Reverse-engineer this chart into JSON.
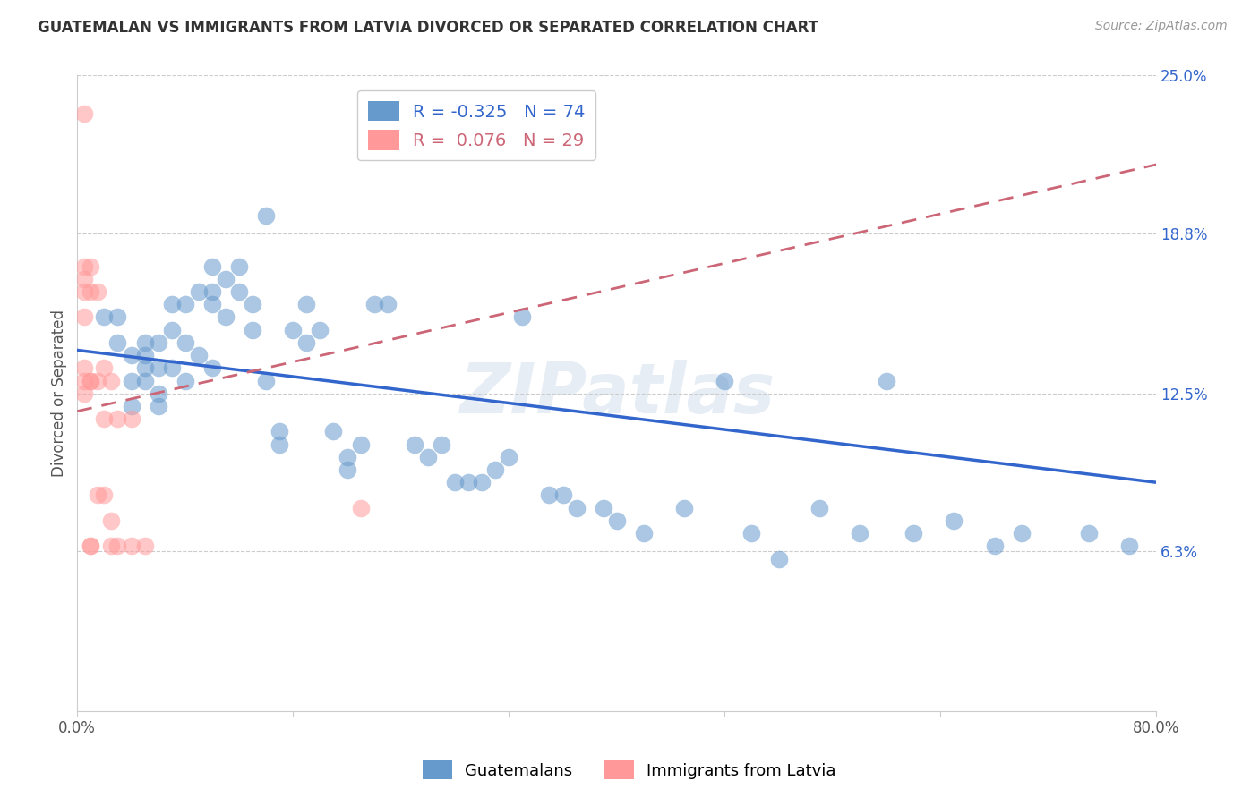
{
  "title": "GUATEMALAN VS IMMIGRANTS FROM LATVIA DIVORCED OR SEPARATED CORRELATION CHART",
  "source": "Source: ZipAtlas.com",
  "xlabel": "",
  "ylabel": "Divorced or Separated",
  "x_min": 0.0,
  "x_max": 0.8,
  "y_min": 0.0,
  "y_max": 0.25,
  "y_ticks": [
    0.063,
    0.125,
    0.188,
    0.25
  ],
  "y_tick_labels": [
    "6.3%",
    "12.5%",
    "18.8%",
    "25.0%"
  ],
  "x_ticks": [
    0.0,
    0.16,
    0.32,
    0.48,
    0.64,
    0.8
  ],
  "x_tick_labels": [
    "0.0%",
    "",
    "",
    "",
    "",
    "80.0%"
  ],
  "blue_R": -0.325,
  "blue_N": 74,
  "pink_R": 0.076,
  "pink_N": 29,
  "blue_color": "#6699CC",
  "pink_color": "#FF9999",
  "blue_line_color": "#3366CC",
  "pink_line_color": "#CC6677",
  "watermark": "ZIPatlas",
  "blue_line_x0": 0.0,
  "blue_line_x1": 0.8,
  "blue_line_y0": 0.142,
  "blue_line_y1": 0.09,
  "pink_line_x0": 0.0,
  "pink_line_x1": 0.8,
  "pink_line_y0": 0.118,
  "pink_line_y1": 0.215,
  "blue_scatter_x": [
    0.02,
    0.03,
    0.03,
    0.04,
    0.04,
    0.04,
    0.05,
    0.05,
    0.05,
    0.05,
    0.06,
    0.06,
    0.06,
    0.06,
    0.07,
    0.07,
    0.07,
    0.08,
    0.08,
    0.08,
    0.09,
    0.09,
    0.1,
    0.1,
    0.1,
    0.1,
    0.11,
    0.11,
    0.12,
    0.12,
    0.13,
    0.13,
    0.14,
    0.14,
    0.15,
    0.15,
    0.16,
    0.17,
    0.17,
    0.18,
    0.19,
    0.2,
    0.2,
    0.21,
    0.22,
    0.23,
    0.25,
    0.26,
    0.27,
    0.28,
    0.29,
    0.3,
    0.31,
    0.32,
    0.33,
    0.35,
    0.36,
    0.37,
    0.39,
    0.4,
    0.42,
    0.45,
    0.48,
    0.5,
    0.52,
    0.55,
    0.58,
    0.6,
    0.62,
    0.65,
    0.68,
    0.7,
    0.75,
    0.78
  ],
  "blue_scatter_y": [
    0.155,
    0.145,
    0.155,
    0.13,
    0.14,
    0.12,
    0.135,
    0.14,
    0.13,
    0.145,
    0.135,
    0.145,
    0.125,
    0.12,
    0.16,
    0.15,
    0.135,
    0.16,
    0.145,
    0.13,
    0.165,
    0.14,
    0.175,
    0.165,
    0.16,
    0.135,
    0.17,
    0.155,
    0.175,
    0.165,
    0.16,
    0.15,
    0.195,
    0.13,
    0.11,
    0.105,
    0.15,
    0.16,
    0.145,
    0.15,
    0.11,
    0.1,
    0.095,
    0.105,
    0.16,
    0.16,
    0.105,
    0.1,
    0.105,
    0.09,
    0.09,
    0.09,
    0.095,
    0.1,
    0.155,
    0.085,
    0.085,
    0.08,
    0.08,
    0.075,
    0.07,
    0.08,
    0.13,
    0.07,
    0.06,
    0.08,
    0.07,
    0.13,
    0.07,
    0.075,
    0.065,
    0.07,
    0.07,
    0.065
  ],
  "pink_scatter_x": [
    0.005,
    0.005,
    0.005,
    0.005,
    0.005,
    0.005,
    0.005,
    0.005,
    0.01,
    0.01,
    0.01,
    0.01,
    0.01,
    0.01,
    0.015,
    0.015,
    0.015,
    0.02,
    0.02,
    0.02,
    0.025,
    0.025,
    0.025,
    0.03,
    0.03,
    0.04,
    0.04,
    0.05,
    0.21
  ],
  "pink_scatter_y": [
    0.235,
    0.175,
    0.17,
    0.165,
    0.155,
    0.135,
    0.13,
    0.125,
    0.175,
    0.165,
    0.13,
    0.13,
    0.065,
    0.065,
    0.165,
    0.13,
    0.085,
    0.135,
    0.115,
    0.085,
    0.13,
    0.075,
    0.065,
    0.115,
    0.065,
    0.115,
    0.065,
    0.065,
    0.08
  ]
}
